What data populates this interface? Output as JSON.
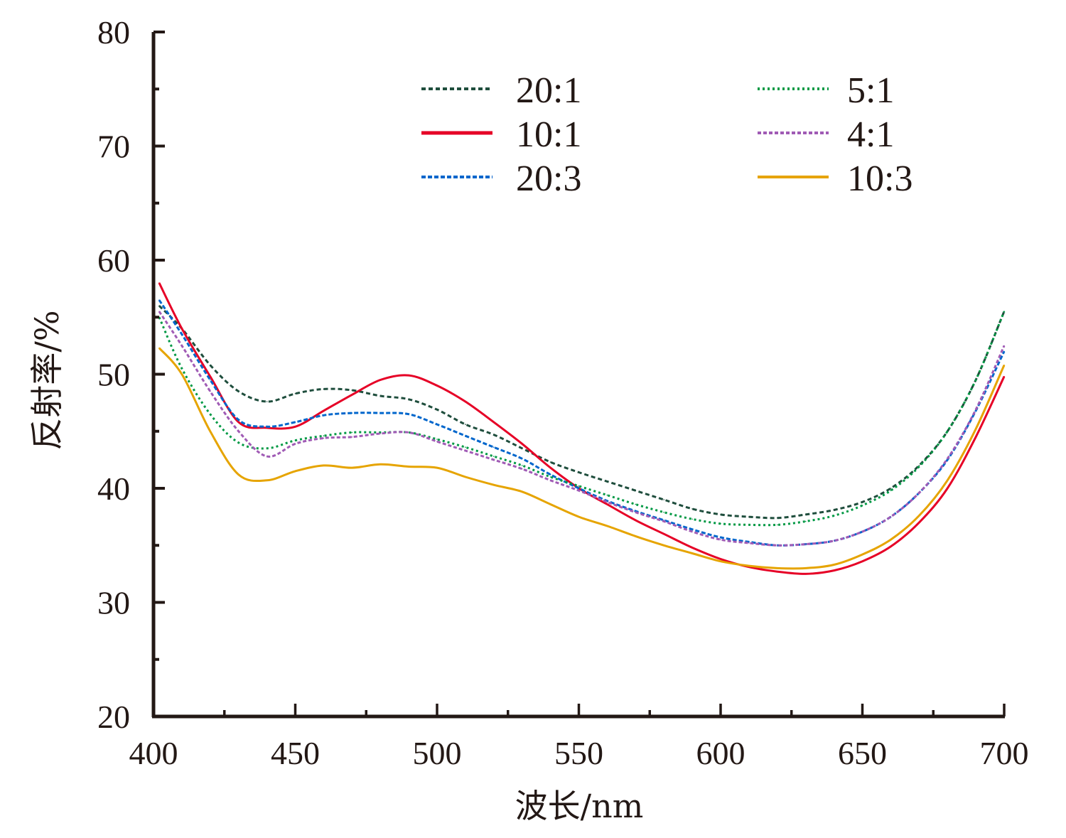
{
  "chart_data": {
    "type": "line",
    "title": "",
    "xlabel": "波长/nm",
    "ylabel": "反射率/%",
    "xlim": [
      400,
      700
    ],
    "ylim": [
      20,
      80
    ],
    "xticks": [
      "400",
      "450",
      "500",
      "550",
      "600",
      "650",
      "700"
    ],
    "yticks": [
      "20",
      "30",
      "40",
      "50",
      "60",
      "70",
      "80"
    ],
    "grid": false,
    "legend_position": "top-right",
    "x": [
      402,
      410,
      420,
      430,
      440,
      450,
      460,
      470,
      480,
      490,
      500,
      510,
      520,
      530,
      540,
      550,
      560,
      570,
      580,
      590,
      600,
      610,
      620,
      630,
      640,
      650,
      660,
      670,
      680,
      690,
      700
    ],
    "series": [
      {
        "name": "20:1",
        "color": "#1f4e3d",
        "dash": "6,4",
        "values": [
          56.0,
          54.0,
          50.8,
          48.5,
          47.6,
          48.3,
          48.7,
          48.6,
          48.1,
          47.8,
          46.9,
          45.6,
          44.7,
          43.5,
          42.3,
          41.4,
          40.6,
          39.8,
          39.0,
          38.2,
          37.7,
          37.5,
          37.4,
          37.7,
          38.1,
          38.8,
          40.0,
          42.0,
          45.0,
          49.5,
          55.5
        ]
      },
      {
        "name": "10:1",
        "color": "#e60026",
        "dash": "",
        "values": [
          58.0,
          54.0,
          49.8,
          45.8,
          45.3,
          45.4,
          46.8,
          48.2,
          49.5,
          49.9,
          49.0,
          47.6,
          45.8,
          43.9,
          41.8,
          40.0,
          38.6,
          37.2,
          36.0,
          34.8,
          33.8,
          33.1,
          32.7,
          32.5,
          32.8,
          33.6,
          34.9,
          37.0,
          40.0,
          44.5,
          49.8
        ]
      },
      {
        "name": "20:3",
        "color": "#0066cc",
        "dash": "6,3",
        "values": [
          56.5,
          53.5,
          49.5,
          46.0,
          45.4,
          45.8,
          46.4,
          46.6,
          46.6,
          46.5,
          45.6,
          44.6,
          43.6,
          42.6,
          41.2,
          40.0,
          38.9,
          38.0,
          37.2,
          36.4,
          35.7,
          35.3,
          35.0,
          35.1,
          35.4,
          36.2,
          37.5,
          39.6,
          42.5,
          46.8,
          52.0
        ]
      },
      {
        "name": "5:1",
        "color": "#009944",
        "dash": "3,4",
        "values": [
          55.0,
          50.5,
          46.5,
          44.0,
          43.5,
          44.2,
          44.6,
          44.9,
          44.9,
          44.9,
          44.3,
          43.6,
          42.8,
          42.0,
          41.0,
          40.2,
          39.4,
          38.6,
          37.9,
          37.3,
          36.9,
          36.8,
          36.8,
          37.1,
          37.6,
          38.5,
          39.8,
          41.9,
          45.0,
          49.5,
          55.5
        ]
      },
      {
        "name": "4:1",
        "color": "#a05bb5",
        "dash": "5,3",
        "values": [
          55.5,
          52.5,
          48.5,
          45.0,
          42.8,
          43.9,
          44.4,
          44.5,
          44.8,
          44.9,
          44.1,
          43.3,
          42.5,
          41.7,
          40.7,
          39.8,
          38.8,
          37.9,
          37.1,
          36.2,
          35.5,
          35.2,
          35.0,
          35.1,
          35.4,
          36.2,
          37.5,
          39.6,
          42.6,
          46.9,
          52.5
        ]
      },
      {
        "name": "10:3",
        "color": "#e6a400",
        "dash": "",
        "values": [
          52.3,
          50.0,
          45.0,
          41.2,
          40.7,
          41.5,
          42.0,
          41.8,
          42.1,
          41.9,
          41.8,
          41.0,
          40.3,
          39.7,
          38.6,
          37.5,
          36.7,
          35.8,
          35.0,
          34.3,
          33.6,
          33.2,
          33.0,
          33.0,
          33.3,
          34.2,
          35.5,
          37.6,
          40.7,
          45.2,
          50.8
        ]
      }
    ]
  }
}
